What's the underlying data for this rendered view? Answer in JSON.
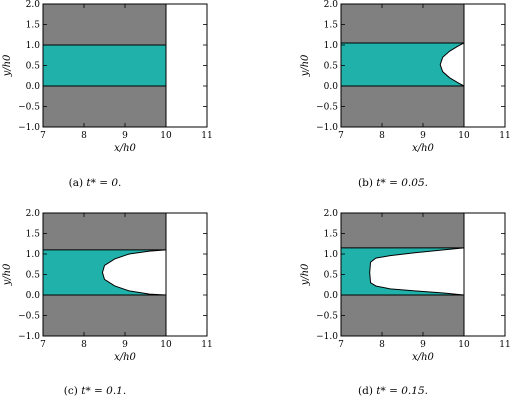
{
  "colors": {
    "solid": "#808080",
    "fluid": "#20b2aa",
    "outline": "#000000",
    "gap": "#ffffff"
  },
  "chart_data": [
    {
      "type": "area",
      "caption_prefix": "(a) ",
      "caption_math": "t* = 0.",
      "xlabel": "x/h0",
      "ylabel": "y/h0",
      "xlim": [
        7,
        11
      ],
      "ylim": [
        -1,
        2
      ],
      "xticks": [
        "7",
        "8",
        "9",
        "10",
        "11"
      ],
      "yticks": [
        "−1.0",
        "−0.5",
        "0.0",
        "0.5",
        "1.0",
        "1.5",
        "2.0"
      ],
      "wall_x": 10,
      "channel": {
        "bottom": 0.0,
        "top": 1.0
      },
      "front": {
        "x": [
          10,
          10,
          10,
          10,
          10
        ],
        "y": [
          0.0,
          0.25,
          0.5,
          0.75,
          1.0
        ]
      }
    },
    {
      "type": "area",
      "caption_prefix": "(b) ",
      "caption_math": "t* = 0.05.",
      "xlabel": "x/h0",
      "ylabel": "y/h0",
      "xlim": [
        7,
        11
      ],
      "ylim": [
        -1,
        2
      ],
      "xticks": [
        "7",
        "8",
        "9",
        "10",
        "11"
      ],
      "yticks": [
        "−1.0",
        "−0.5",
        "0.0",
        "0.5",
        "1.0",
        "1.5",
        "2.0"
      ],
      "wall_x": 10,
      "channel": {
        "bottom": 0.0,
        "top": 1.05
      },
      "front": {
        "x": [
          10.0,
          9.85,
          9.65,
          9.48,
          9.42,
          9.48,
          9.65,
          9.85,
          10.0
        ],
        "y": [
          0.0,
          0.08,
          0.2,
          0.35,
          0.52,
          0.7,
          0.85,
          0.97,
          1.05
        ]
      }
    },
    {
      "type": "area",
      "caption_prefix": "(c) ",
      "caption_math": "t* = 0.1.",
      "xlabel": "x/h0",
      "ylabel": "y/h0",
      "xlim": [
        7,
        11
      ],
      "ylim": [
        -1,
        2
      ],
      "xticks": [
        "7",
        "8",
        "9",
        "10",
        "11"
      ],
      "yticks": [
        "−1.0",
        "−0.5",
        "0.0",
        "0.5",
        "1.0",
        "1.5",
        "2.0"
      ],
      "wall_x": 10,
      "channel": {
        "bottom": 0.0,
        "top": 1.1
      },
      "front": {
        "x": [
          10.0,
          9.6,
          9.1,
          8.75,
          8.5,
          8.45,
          8.5,
          8.75,
          9.1,
          9.6,
          10.0
        ],
        "y": [
          0.0,
          0.02,
          0.1,
          0.22,
          0.38,
          0.55,
          0.72,
          0.88,
          1.0,
          1.07,
          1.1
        ]
      }
    },
    {
      "type": "area",
      "caption_prefix": "(d) ",
      "caption_math": "t* = 0.15.",
      "xlabel": "x/h0",
      "ylabel": "y/h0",
      "xlim": [
        7,
        11
      ],
      "ylim": [
        -1,
        2
      ],
      "xticks": [
        "7",
        "8",
        "9",
        "10",
        "11"
      ],
      "yticks": [
        "−1.0",
        "−0.5",
        "0.0",
        "0.5",
        "1.0",
        "1.5",
        "2.0"
      ],
      "wall_x": 10,
      "channel": {
        "bottom": 0.0,
        "top": 1.15
      },
      "front": {
        "x": [
          10.0,
          9.5,
          8.8,
          8.2,
          7.85,
          7.72,
          7.7,
          7.72,
          7.85,
          8.2,
          8.8,
          9.5,
          10.0
        ],
        "y": [
          0.0,
          0.05,
          0.1,
          0.15,
          0.22,
          0.3,
          0.55,
          0.8,
          0.9,
          0.96,
          1.03,
          1.1,
          1.15
        ]
      }
    }
  ]
}
